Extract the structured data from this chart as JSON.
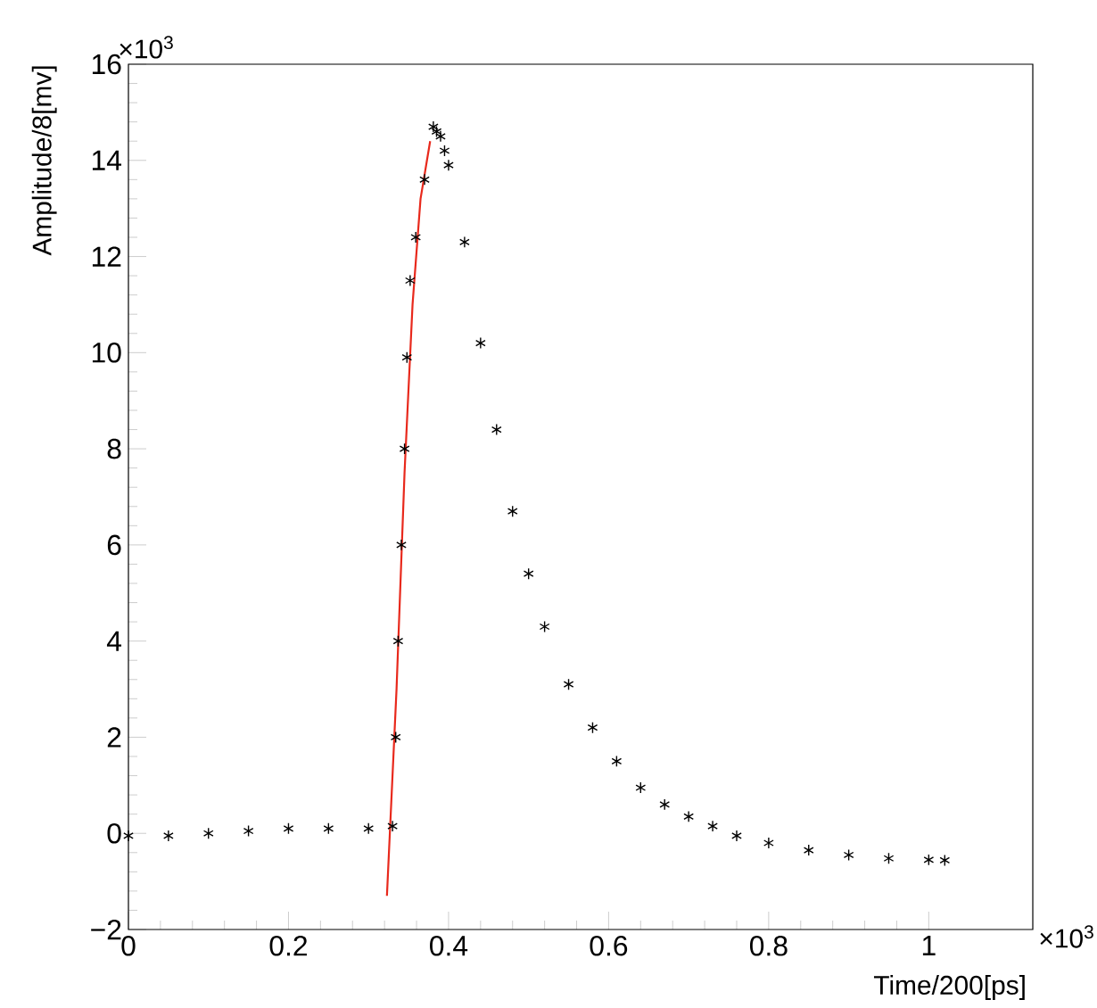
{
  "chart_data": {
    "type": "scatter",
    "xlabel": "Time/200[ps]",
    "ylabel": "Amplitude/8[mv]",
    "annotations": [
      "×10$^{3}$",
      "×10$^{3}$"
    ],
    "xlim": [
      0,
      1.13
    ],
    "ylim": [
      -2,
      16
    ],
    "xticks": [
      0,
      0.2,
      0.4,
      0.6,
      0.8,
      1
    ],
    "yticks": [
      {
        "value": -2,
        "label": "−2"
      },
      0,
      2,
      4,
      6,
      8,
      10,
      12,
      14,
      16
    ],
    "grid": false,
    "series": [
      {
        "type": "scatter",
        "color": "#000000",
        "marker": "cross",
        "x": [
          0,
          0.05,
          0.1,
          0.15,
          0.2,
          0.25,
          0.3,
          0.33,
          0.334,
          0.337,
          0.341,
          0.345,
          0.348,
          0.352,
          0.359,
          0.37,
          0.381,
          0.385,
          0.39,
          0.395,
          0.4,
          0.42,
          0.44,
          0.46,
          0.48,
          0.5,
          0.52,
          0.55,
          0.58,
          0.61,
          0.64,
          0.67,
          0.7,
          0.73,
          0.76,
          0.8,
          0.85,
          0.9,
          0.95,
          1.0,
          1.02
        ],
        "values": [
          -0.05,
          -0.05,
          0,
          0.05,
          0.1,
          0.1,
          0.1,
          0.15,
          2,
          4,
          6,
          8,
          9.9,
          11.5,
          12.4,
          13.6,
          14.7,
          14.6,
          14.5,
          14.2,
          13.9,
          12.3,
          10.2,
          8.4,
          6.7,
          5.4,
          4.3,
          3.1,
          2.2,
          1.5,
          0.95,
          0.6,
          0.35,
          0.15,
          -0.05,
          -0.2,
          -0.35,
          -0.45,
          -0.52,
          -0.55,
          -0.56
        ]
      },
      {
        "type": "line",
        "color": "#e8291c",
        "line_style": "solid",
        "x": [
          0.323,
          0.335,
          0.345,
          0.355,
          0.365,
          0.377
        ],
        "values": [
          -1.3,
          3,
          7.5,
          11,
          13.2,
          14.4
        ]
      }
    ]
  }
}
